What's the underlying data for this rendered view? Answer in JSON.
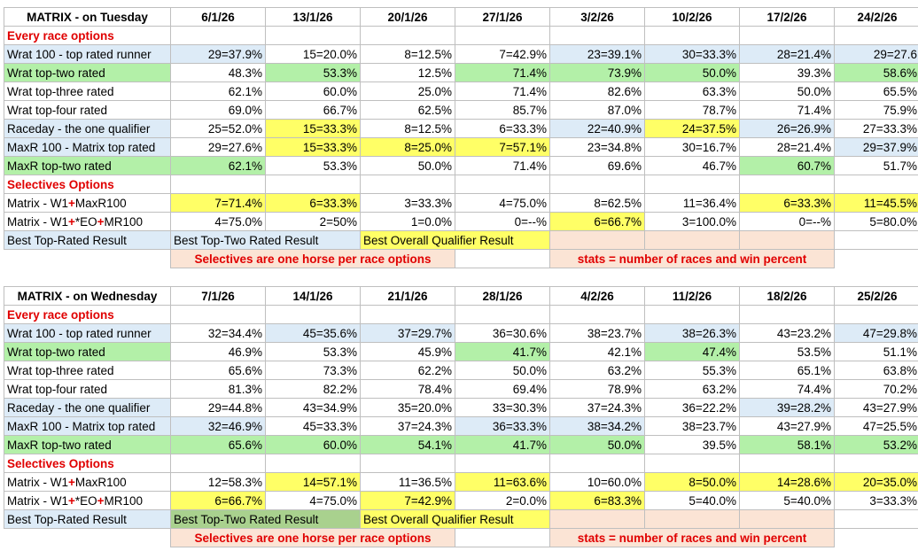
{
  "tables": [
    {
      "title": "MATRIX - on Tuesday",
      "dates": [
        "6/1/26",
        "13/1/26",
        "20/1/26",
        "27/1/26",
        "3/2/26",
        "10/2/26",
        "17/2/26",
        "24/2/26"
      ],
      "section_every": "Every race options",
      "rows_every": [
        {
          "label": "Wrat 100 - top rated runner",
          "vals": [
            "29=37.9%",
            "15=20.0%",
            "8=12.5%",
            "7=42.9%",
            "23=39.1%",
            "30=33.3%",
            "28=21.4%",
            "29=27.6"
          ]
        },
        {
          "label": "Wrat top-two rated",
          "vals": [
            "48.3%",
            "53.3%",
            "12.5%",
            "71.4%",
            "73.9%",
            "50.0%",
            "39.3%",
            "58.6%"
          ]
        },
        {
          "label": "Wrat top-three rated",
          "vals": [
            "62.1%",
            "60.0%",
            "25.0%",
            "71.4%",
            "82.6%",
            "63.3%",
            "50.0%",
            "65.5%"
          ]
        },
        {
          "label": "Wrat top-four rated",
          "vals": [
            "69.0%",
            "66.7%",
            "62.5%",
            "85.7%",
            "87.0%",
            "78.7%",
            "71.4%",
            "75.9%"
          ]
        },
        {
          "label": "Raceday - the one qualifier",
          "vals": [
            "25=52.0%",
            "15=33.3%",
            "8=12.5%",
            "6=33.3%",
            "22=40.9%",
            "24=37.5%",
            "26=26.9%",
            "27=33.3%"
          ]
        },
        {
          "label": "MaxR 100 - Matrix top rated",
          "vals": [
            "29=27.6%",
            "15=33.3%",
            "8=25.0%",
            "7=57.1%",
            "23=34.8%",
            "30=16.7%",
            "28=21.4%",
            "29=37.9%"
          ]
        },
        {
          "label": "MaxR top-two rated",
          "vals": [
            "62.1%",
            "53.3%",
            "50.0%",
            "71.4%",
            "69.6%",
            "46.7%",
            "60.7%",
            "51.7%"
          ]
        }
      ],
      "section_sel": "Selectives Options",
      "rows_sel": [
        {
          "label": [
            "Matrix - W1",
            "+",
            "MaxR100"
          ],
          "vals": [
            "7=71.4%",
            "6=33.3%",
            "3=33.3%",
            "4=75.0%",
            "8=62.5%",
            "11=36.4%",
            "6=33.3%",
            "11=45.5%"
          ]
        },
        {
          "label": [
            "Matrix - W1",
            "+",
            "*EO",
            "+",
            "MR100"
          ],
          "vals": [
            "4=75.0%",
            "2=50%",
            "1=0.0%",
            "0=--%",
            "6=66.7%",
            "3=100.0%",
            "0=--%",
            "5=80.0%"
          ]
        }
      ],
      "legend": {
        "top_rated": "Best Top-Rated Result",
        "top_two": "Best Top-Two Rated Result",
        "overall": "Best Overall Qualifier Result"
      },
      "notes": {
        "selectives": "Selectives are one horse per race options",
        "stats": "stats = number of races and win percent"
      }
    },
    {
      "title": "MATRIX - on Wednesday",
      "dates": [
        "7/1/26",
        "14/1/26",
        "21/1/26",
        "28/1/26",
        "4/2/26",
        "11/2/26",
        "18/2/26",
        "25/2/26"
      ],
      "section_every": "Every race options",
      "rows_every": [
        {
          "label": "Wrat 100 - top rated runner",
          "vals": [
            "32=34.4%",
            "45=35.6%",
            "37=29.7%",
            "36=30.6%",
            "38=23.7%",
            "38=26.3%",
            "43=23.2%",
            "47=29.8%"
          ]
        },
        {
          "label": "Wrat top-two rated",
          "vals": [
            "46.9%",
            "53.3%",
            "45.9%",
            "41.7%",
            "42.1%",
            "47.4%",
            "53.5%",
            "51.1%"
          ]
        },
        {
          "label": "Wrat top-three rated",
          "vals": [
            "65.6%",
            "73.3%",
            "62.2%",
            "50.0%",
            "63.2%",
            "55.3%",
            "65.1%",
            "63.8%"
          ]
        },
        {
          "label": "Wrat top-four rated",
          "vals": [
            "81.3%",
            "82.2%",
            "78.4%",
            "69.4%",
            "78.9%",
            "63.2%",
            "74.4%",
            "70.2%"
          ]
        },
        {
          "label": "Raceday - the one qualifier",
          "vals": [
            "29=44.8%",
            "43=34.9%",
            "35=20.0%",
            "33=30.3%",
            "37=24.3%",
            "36=22.2%",
            "39=28.2%",
            "43=27.9%"
          ]
        },
        {
          "label": "MaxR 100 - Matrix top rated",
          "vals": [
            "32=46.9%",
            "45=33.3%",
            "37=24.3%",
            "36=33.3%",
            "38=34.2%",
            "38=23.7%",
            "43=27.9%",
            "47=25.5%"
          ]
        },
        {
          "label": "MaxR top-two rated",
          "vals": [
            "65.6%",
            "60.0%",
            "54.1%",
            "41.7%",
            "50.0%",
            "39.5%",
            "58.1%",
            "53.2%"
          ]
        }
      ],
      "section_sel": "Selectives Options",
      "rows_sel": [
        {
          "label": [
            "Matrix - W1",
            "+",
            "MaxR100"
          ],
          "vals": [
            "12=58.3%",
            "14=57.1%",
            "11=36.5%",
            "11=63.6%",
            "10=60.0%",
            "8=50.0%",
            "14=28.6%",
            "20=35.0%"
          ]
        },
        {
          "label": [
            "Matrix - W1",
            "+",
            "*EO",
            "+",
            "MR100"
          ],
          "vals": [
            "6=66.7%",
            "4=75.0%",
            "7=42.9%",
            "2=0.0%",
            "6=83.3%",
            "5=40.0%",
            "5=40.0%",
            "3=33.3%"
          ]
        }
      ],
      "legend": {
        "top_rated": "Best Top-Rated Result",
        "top_two": "Best Top-Two Rated Result",
        "overall": "Best Overall Qualifier Result"
      },
      "notes": {
        "selectives": "Selectives are one horse per race options",
        "stats": "stats = number of races and win percent"
      }
    }
  ],
  "colors": {
    "blue": "#ddebf7",
    "green": "#b3f0a8",
    "yellow": "#ffff66",
    "peach": "#fbe4d5",
    "red": "#e00000"
  }
}
